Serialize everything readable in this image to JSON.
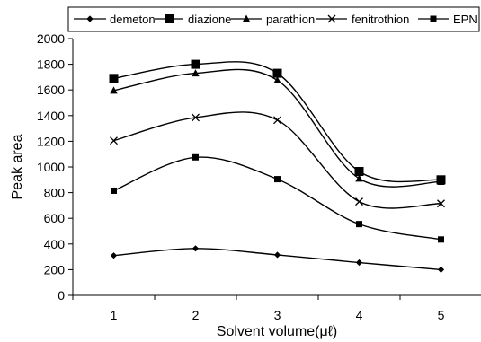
{
  "chart_data": {
    "type": "line",
    "title": "",
    "xlabel": "Solvent volume(μℓ)",
    "ylabel": "Peak area",
    "x": [
      1,
      2,
      3,
      4,
      5
    ],
    "xlim": [
      0.5,
      5.5
    ],
    "ylim": [
      0,
      2000
    ],
    "yticks": [
      0,
      200,
      400,
      600,
      800,
      1000,
      1200,
      1400,
      1600,
      1800,
      2000
    ],
    "grid": false,
    "smooth": true,
    "legend_position": "top",
    "series": [
      {
        "name": "demeton",
        "marker": "diamond",
        "color": "#000000",
        "values": [
          310,
          365,
          315,
          255,
          200
        ]
      },
      {
        "name": "diazione",
        "marker": "square-large",
        "color": "#000000",
        "values": [
          1690,
          1800,
          1730,
          965,
          900
        ]
      },
      {
        "name": "parathion",
        "marker": "triangle",
        "color": "#000000",
        "values": [
          1595,
          1730,
          1675,
          910,
          885
        ]
      },
      {
        "name": "fenitrothion",
        "marker": "x",
        "color": "#000000",
        "values": [
          1205,
          1385,
          1365,
          730,
          715
        ]
      },
      {
        "name": "EPN",
        "marker": "square",
        "color": "#000000",
        "values": [
          815,
          1075,
          905,
          555,
          435
        ]
      }
    ]
  }
}
